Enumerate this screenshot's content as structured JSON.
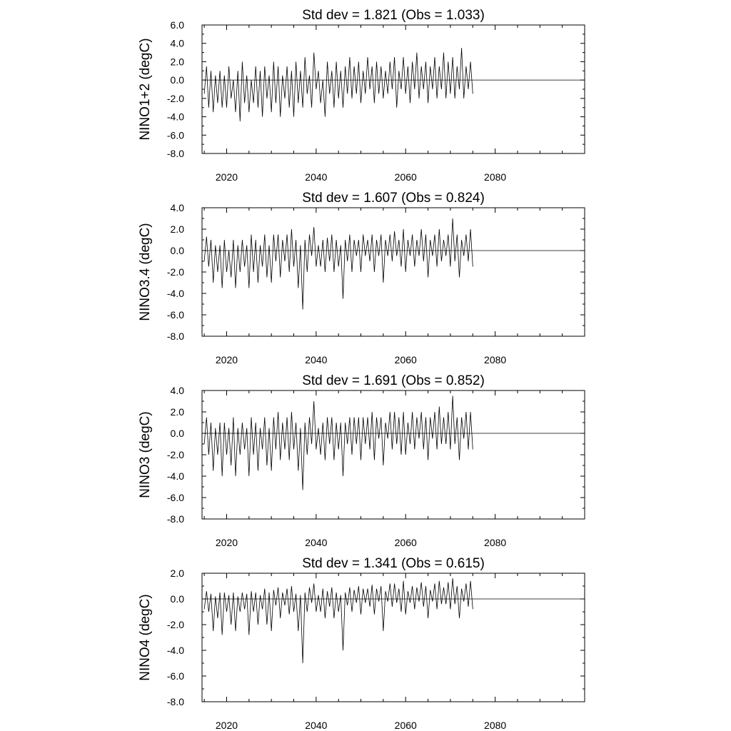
{
  "chart_data": [
    {
      "type": "line",
      "title": "Std dev = 1.821 (Obs = 1.033)",
      "ylabel": "NINO1+2 (degC)",
      "ylim": [
        -8.0,
        6.0
      ],
      "xlim": [
        2014.5,
        2100
      ],
      "y_ticks": [
        "6.0",
        "4.0",
        "2.0",
        "0.0",
        "-2.0",
        "-4.0",
        "-6.0",
        "-8.0"
      ],
      "x_ticks": [
        "2020",
        "2040",
        "2060",
        "2080"
      ],
      "series": [
        {
          "values_x": [
            2015,
            2015.5,
            2016,
            2016.5,
            2017,
            2017.5,
            2018,
            2018.5,
            2019,
            2019.5,
            2020,
            2020.5,
            2021,
            2021.5,
            2022,
            2022.5,
            2023,
            2023.5,
            2024,
            2024.5,
            2025,
            2025.5,
            2026,
            2026.5,
            2027,
            2027.5,
            2028,
            2028.5,
            2029,
            2029.5,
            2030,
            2030.5,
            2031,
            2031.5,
            2032,
            2032.5,
            2033,
            2033.5,
            2034,
            2034.5,
            2035,
            2035.5,
            2036,
            2036.5,
            2037,
            2037.5,
            2038,
            2038.5,
            2039,
            2039.5,
            2040,
            2040.5,
            2041,
            2041.5,
            2042,
            2042.5,
            2043,
            2043.5,
            2044,
            2044.5,
            2045,
            2045.5,
            2046,
            2046.5,
            2047,
            2047.5,
            2048,
            2048.5,
            2049,
            2049.5,
            2050,
            2050.5,
            2051,
            2051.5,
            2052,
            2052.5,
            2053,
            2053.5,
            2054,
            2054.5,
            2055,
            2055.5,
            2056,
            2056.5,
            2057,
            2057.5,
            2058,
            2058.5,
            2059,
            2059.5,
            2060,
            2060.5,
            2061,
            2061.5,
            2062,
            2062.5,
            2063,
            2063.5,
            2064,
            2064.5,
            2065,
            2065.5,
            2066,
            2066.5,
            2067,
            2067.5,
            2068,
            2068.5,
            2069,
            2069.5,
            2070,
            2070.5,
            2071,
            2071.5,
            2072,
            2072.5,
            2073,
            2073.5,
            2074,
            2074.5,
            2075
          ],
          "values_y": [
            -1.5,
            1.5,
            -3.0,
            1.0,
            -3.5,
            0.5,
            -2.5,
            1.0,
            -3.0,
            0.5,
            -3.0,
            1.5,
            -2.0,
            0.0,
            -3.5,
            1.0,
            -4.5,
            2.0,
            -2.5,
            0.5,
            -3.5,
            0.0,
            -2.5,
            1.5,
            -3.0,
            1.0,
            -4.0,
            1.5,
            -2.0,
            0.5,
            -3.5,
            2.0,
            -2.5,
            1.5,
            -4.0,
            0.5,
            -2.0,
            1.5,
            -3.0,
            1.0,
            -4.0,
            2.0,
            -2.5,
            1.0,
            -3.0,
            2.5,
            -1.5,
            0.5,
            -3.0,
            3.0,
            -1.0,
            1.0,
            -2.5,
            0.0,
            -4.0,
            2.0,
            -1.5,
            1.0,
            -3.0,
            2.0,
            -2.0,
            1.0,
            -3.0,
            1.5,
            -1.5,
            2.5,
            -2.0,
            1.5,
            -1.5,
            2.0,
            -2.5,
            1.0,
            -1.5,
            2.5,
            -1.0,
            1.5,
            -2.5,
            2.0,
            -1.5,
            1.5,
            -2.0,
            1.0,
            -1.5,
            2.0,
            -1.0,
            2.5,
            -3.0,
            1.0,
            -1.0,
            2.5,
            -1.5,
            1.5,
            -2.5,
            2.0,
            -1.0,
            3.0,
            -2.0,
            1.5,
            -1.0,
            2.0,
            -2.5,
            1.5,
            -1.0,
            2.5,
            -2.0,
            1.5,
            -1.0,
            3.0,
            -2.0,
            2.0,
            -1.5,
            2.5,
            -2.0,
            1.5,
            -1.0,
            3.5,
            -2.0,
            1.5,
            -1.0,
            2.0,
            -1.5
          ]
        }
      ]
    },
    {
      "type": "line",
      "title": "Std dev = 1.607 (Obs = 0.824)",
      "ylabel": "NINO3.4 (degC)",
      "ylim": [
        -8.0,
        4.0
      ],
      "xlim": [
        2014.5,
        2100
      ],
      "y_ticks": [
        "4.0",
        "2.0",
        "0.0",
        "-2.0",
        "-4.0",
        "-6.0",
        "-8.0"
      ],
      "x_ticks": [
        "2020",
        "2040",
        "2060",
        "2080"
      ],
      "series": [
        {
          "values_x": [
            2015,
            2015.5,
            2016,
            2016.5,
            2017,
            2017.5,
            2018,
            2018.5,
            2019,
            2019.5,
            2020,
            2020.5,
            2021,
            2021.5,
            2022,
            2022.5,
            2023,
            2023.5,
            2024,
            2024.5,
            2025,
            2025.5,
            2026,
            2026.5,
            2027,
            2027.5,
            2028,
            2028.5,
            2029,
            2029.5,
            2030,
            2030.5,
            2031,
            2031.5,
            2032,
            2032.5,
            2033,
            2033.5,
            2034,
            2034.5,
            2035,
            2035.5,
            2036,
            2036.5,
            2037,
            2037.5,
            2038,
            2038.5,
            2039,
            2039.5,
            2040,
            2040.5,
            2041,
            2041.5,
            2042,
            2042.5,
            2043,
            2043.5,
            2044,
            2044.5,
            2045,
            2045.5,
            2046,
            2046.5,
            2047,
            2047.5,
            2048,
            2048.5,
            2049,
            2049.5,
            2050,
            2050.5,
            2051,
            2051.5,
            2052,
            2052.5,
            2053,
            2053.5,
            2054,
            2054.5,
            2055,
            2055.5,
            2056,
            2056.5,
            2057,
            2057.5,
            2058,
            2058.5,
            2059,
            2059.5,
            2060,
            2060.5,
            2061,
            2061.5,
            2062,
            2062.5,
            2063,
            2063.5,
            2064,
            2064.5,
            2065,
            2065.5,
            2066,
            2066.5,
            2067,
            2067.5,
            2068,
            2068.5,
            2069,
            2069.5,
            2070,
            2070.5,
            2071,
            2071.5,
            2072,
            2072.5,
            2073,
            2073.5,
            2074,
            2074.5,
            2075
          ],
          "values_y": [
            -1.0,
            1.3,
            -1.5,
            1.0,
            -3.0,
            0.5,
            -2.0,
            0.5,
            -3.5,
            1.0,
            -2.0,
            0.0,
            -2.5,
            1.0,
            -3.5,
            0.5,
            -2.0,
            1.0,
            -1.5,
            0.5,
            -3.5,
            1.5,
            -2.0,
            1.0,
            -3.0,
            0.5,
            -1.5,
            1.5,
            -2.5,
            0.5,
            -3.0,
            1.5,
            -1.0,
            1.5,
            -2.5,
            1.0,
            -1.0,
            1.5,
            -2.0,
            2.0,
            -1.5,
            1.0,
            -3.5,
            0.5,
            -5.5,
            1.0,
            -2.0,
            1.5,
            -0.5,
            2.2,
            -1.5,
            0.5,
            -1.5,
            1.0,
            -2.0,
            1.2,
            -1.0,
            1.5,
            -2.0,
            1.0,
            -1.5,
            0.5,
            -4.5,
            1.0,
            -1.0,
            1.5,
            -2.0,
            1.0,
            -0.5,
            1.0,
            -2.0,
            1.5,
            -0.5,
            1.0,
            -1.0,
            1.5,
            -2.0,
            1.0,
            -0.5,
            1.5,
            -3.0,
            1.0,
            -0.5,
            1.5,
            -1.0,
            1.8,
            -0.5,
            1.0,
            -1.5,
            2.0,
            -2.0,
            1.0,
            -0.5,
            1.5,
            -1.5,
            1.0,
            -0.5,
            2.0,
            -1.0,
            1.5,
            -2.5,
            1.0,
            -0.5,
            1.5,
            -1.5,
            2.0,
            -1.0,
            1.0,
            -0.5,
            1.5,
            -1.5,
            3.0,
            -1.0,
            1.5,
            -2.5,
            1.0,
            -0.5,
            1.5,
            -1.0,
            2.0,
            -1.5
          ]
        }
      ]
    },
    {
      "type": "line",
      "title": "Std dev = 1.691 (Obs = 0.852)",
      "ylabel": "NINO3 (degC)",
      "ylim": [
        -8.0,
        4.0
      ],
      "xlim": [
        2014.5,
        2100
      ],
      "y_ticks": [
        "4.0",
        "2.0",
        "0.0",
        "-2.0",
        "-4.0",
        "-6.0",
        "-8.0"
      ],
      "x_ticks": [
        "2020",
        "2040",
        "2060",
        "2080"
      ],
      "series": [
        {
          "values_x": [
            2015,
            2015.5,
            2016,
            2016.5,
            2017,
            2017.5,
            2018,
            2018.5,
            2019,
            2019.5,
            2020,
            2020.5,
            2021,
            2021.5,
            2022,
            2022.5,
            2023,
            2023.5,
            2024,
            2024.5,
            2025,
            2025.5,
            2026,
            2026.5,
            2027,
            2027.5,
            2028,
            2028.5,
            2029,
            2029.5,
            2030,
            2030.5,
            2031,
            2031.5,
            2032,
            2032.5,
            2033,
            2033.5,
            2034,
            2034.5,
            2035,
            2035.5,
            2036,
            2036.5,
            2037,
            2037.5,
            2038,
            2038.5,
            2039,
            2039.5,
            2040,
            2040.5,
            2041,
            2041.5,
            2042,
            2042.5,
            2043,
            2043.5,
            2044,
            2044.5,
            2045,
            2045.5,
            2046,
            2046.5,
            2047,
            2047.5,
            2048,
            2048.5,
            2049,
            2049.5,
            2050,
            2050.5,
            2051,
            2051.5,
            2052,
            2052.5,
            2053,
            2053.5,
            2054,
            2054.5,
            2055,
            2055.5,
            2056,
            2056.5,
            2057,
            2057.5,
            2058,
            2058.5,
            2059,
            2059.5,
            2060,
            2060.5,
            2061,
            2061.5,
            2062,
            2062.5,
            2063,
            2063.5,
            2064,
            2064.5,
            2065,
            2065.5,
            2066,
            2066.5,
            2067,
            2067.5,
            2068,
            2068.5,
            2069,
            2069.5,
            2070,
            2070.5,
            2071,
            2071.5,
            2072,
            2072.5,
            2073,
            2073.5,
            2074,
            2074.5,
            2075
          ],
          "values_y": [
            -1.0,
            1.5,
            -2.0,
            1.0,
            -3.5,
            0.5,
            -2.0,
            1.0,
            -4.0,
            1.0,
            -2.0,
            0.5,
            -3.0,
            1.5,
            -4.0,
            0.5,
            -2.0,
            1.0,
            -1.5,
            0.5,
            -4.0,
            1.5,
            -2.0,
            1.0,
            -3.5,
            0.5,
            -1.5,
            1.5,
            -3.0,
            0.5,
            -3.5,
            1.5,
            -1.5,
            2.0,
            -2.5,
            1.0,
            -1.5,
            1.5,
            -2.5,
            2.0,
            -1.5,
            1.0,
            -3.5,
            0.5,
            -5.3,
            1.0,
            -2.0,
            1.5,
            -1.0,
            3.0,
            -1.5,
            0.5,
            -2.0,
            1.0,
            -2.5,
            1.5,
            -1.0,
            1.5,
            -2.5,
            1.0,
            -1.5,
            1.0,
            -4.0,
            1.0,
            -1.0,
            1.5,
            -2.0,
            1.5,
            -1.0,
            1.5,
            -2.5,
            1.5,
            -1.0,
            1.5,
            -1.5,
            2.0,
            -2.5,
            1.5,
            -0.5,
            1.5,
            -3.0,
            1.0,
            -0.5,
            2.0,
            -1.5,
            2.0,
            -1.0,
            1.5,
            -2.0,
            2.0,
            -2.0,
            1.0,
            -1.0,
            2.0,
            -1.5,
            1.5,
            -0.5,
            2.0,
            -1.5,
            1.5,
            -2.5,
            1.5,
            -0.5,
            2.0,
            -1.5,
            2.5,
            -1.0,
            1.5,
            -1.0,
            2.0,
            -1.5,
            3.5,
            -1.0,
            1.5,
            -2.5,
            1.5,
            -0.5,
            2.0,
            -1.5,
            2.0,
            -1.5
          ]
        }
      ]
    },
    {
      "type": "line",
      "title": "Std dev = 1.341 (Obs = 0.615)",
      "ylabel": "NINO4 (degC)",
      "ylim": [
        -8.0,
        2.0
      ],
      "xlim": [
        2014.5,
        2100
      ],
      "y_ticks": [
        "2.0",
        "0.0",
        "-2.0",
        "-4.0",
        "-6.0",
        "-8.0"
      ],
      "x_ticks": [
        "2020",
        "2040",
        "2060",
        "2080"
      ],
      "series": [
        {
          "values_x": [
            2015,
            2015.5,
            2016,
            2016.5,
            2017,
            2017.5,
            2018,
            2018.5,
            2019,
            2019.5,
            2020,
            2020.5,
            2021,
            2021.5,
            2022,
            2022.5,
            2023,
            2023.5,
            2024,
            2024.5,
            2025,
            2025.5,
            2026,
            2026.5,
            2027,
            2027.5,
            2028,
            2028.5,
            2029,
            2029.5,
            2030,
            2030.5,
            2031,
            2031.5,
            2032,
            2032.5,
            2033,
            2033.5,
            2034,
            2034.5,
            2035,
            2035.5,
            2036,
            2036.5,
            2037,
            2037.5,
            2038,
            2038.5,
            2039,
            2039.5,
            2040,
            2040.5,
            2041,
            2041.5,
            2042,
            2042.5,
            2043,
            2043.5,
            2044,
            2044.5,
            2045,
            2045.5,
            2046,
            2046.5,
            2047,
            2047.5,
            2048,
            2048.5,
            2049,
            2049.5,
            2050,
            2050.5,
            2051,
            2051.5,
            2052,
            2052.5,
            2053,
            2053.5,
            2054,
            2054.5,
            2055,
            2055.5,
            2056,
            2056.5,
            2057,
            2057.5,
            2058,
            2058.5,
            2059,
            2059.5,
            2060,
            2060.5,
            2061,
            2061.5,
            2062,
            2062.5,
            2063,
            2063.5,
            2064,
            2064.5,
            2065,
            2065.5,
            2066,
            2066.5,
            2067,
            2067.5,
            2068,
            2068.5,
            2069,
            2069.5,
            2070,
            2070.5,
            2071,
            2071.5,
            2072,
            2072.5,
            2073,
            2073.5,
            2074,
            2074.5,
            2075
          ],
          "values_y": [
            -0.8,
            0.6,
            -1.0,
            0.4,
            -2.5,
            0.2,
            -1.5,
            0.5,
            -2.8,
            0.5,
            -1.0,
            0.3,
            -2.0,
            0.5,
            -2.5,
            0.2,
            -1.0,
            0.5,
            -0.8,
            0.4,
            -2.8,
            0.6,
            -1.0,
            0.5,
            -2.0,
            0.3,
            -0.8,
            0.8,
            -2.0,
            0.5,
            -2.5,
            0.7,
            -0.5,
            0.9,
            -1.5,
            0.5,
            -0.5,
            0.8,
            -1.2,
            1.0,
            -1.0,
            0.4,
            -2.5,
            0.3,
            -5.0,
            0.5,
            -1.0,
            0.9,
            -0.3,
            1.2,
            -1.0,
            0.3,
            -1.0,
            0.8,
            -1.5,
            0.6,
            -0.6,
            0.9,
            -1.5,
            0.5,
            -1.0,
            0.3,
            -4.0,
            0.5,
            -0.5,
            0.9,
            -1.0,
            0.7,
            -0.3,
            1.0,
            -1.2,
            0.8,
            -0.3,
            0.8,
            -0.6,
            1.1,
            -1.2,
            0.8,
            -0.2,
            1.0,
            -2.5,
            0.6,
            -0.2,
            1.2,
            -0.6,
            1.2,
            -0.3,
            0.8,
            -1.0,
            1.4,
            -1.2,
            0.6,
            -0.3,
            1.0,
            -0.8,
            0.9,
            -0.2,
            1.3,
            -0.6,
            1.0,
            -1.5,
            0.7,
            -0.2,
            1.2,
            -0.8,
            1.4,
            -0.4,
            0.9,
            -0.4,
            1.3,
            -0.8,
            1.6,
            -0.4,
            1.0,
            -1.5,
            0.8,
            -0.2,
            1.2,
            -0.6,
            1.4,
            -0.8
          ]
        }
      ]
    }
  ]
}
